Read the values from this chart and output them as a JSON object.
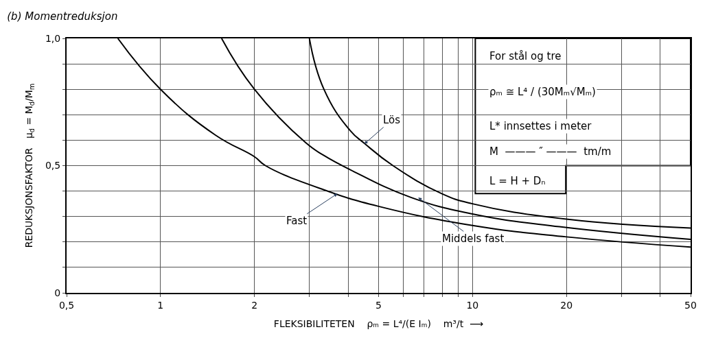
{
  "chart_data": {
    "type": "line",
    "title": "(b) Momentreduksjon",
    "xlabel": "FLEKSIBILITETEN    ρₘ = L⁴/(E Iₘ)    m³/t  ⟶",
    "ylabel": "REDUKSJONSFAKTOR   μ$_{d}$ = M$_{d}$/M$_{m}$",
    "log": "x",
    "grid": true,
    "marker": "none",
    "line_style": "solid",
    "xlim": [
      0.5,
      50
    ],
    "xticks": [
      {
        "value": 0.5,
        "label": "0,5"
      },
      1,
      2,
      {
        "value": 3,
        "label": null
      },
      {
        "value": 4,
        "label": null
      },
      5,
      {
        "value": 6,
        "label": null
      },
      {
        "value": 7,
        "label": null
      },
      {
        "value": 8,
        "label": null
      },
      {
        "value": 9,
        "label": null
      },
      10,
      20,
      {
        "value": 30,
        "label": null
      },
      {
        "value": 40,
        "label": null
      },
      50
    ],
    "ylim": [
      0,
      1
    ],
    "yticks": [
      0,
      {
        "value": 0.1,
        "label": null
      },
      {
        "value": 0.2,
        "label": null
      },
      {
        "value": 0.3,
        "label": null
      },
      {
        "value": 0.4,
        "label": null
      },
      {
        "value": 0.5,
        "label": "0,5"
      },
      {
        "value": 0.6,
        "label": null
      },
      {
        "value": 0.7,
        "label": null
      },
      {
        "value": 0.8,
        "label": null
      },
      {
        "value": 0.9,
        "label": null
      },
      {
        "value": 1,
        "label": "1,0"
      }
    ],
    "series": [
      {
        "color": "#000000",
        "x": [
          0.73,
          1,
          1.5,
          2,
          2.17,
          3.34,
          5,
          10,
          20,
          50
        ],
        "values": [
          1,
          0.8,
          0.62,
          0.535,
          0.5,
          0.405,
          0.34,
          0.265,
          0.22,
          0.18
        ]
      },
      {
        "color": "#000000",
        "x": [
          1.57,
          2,
          2.92,
          3.34,
          4.04,
          6.35,
          10,
          19,
          50
        ],
        "values": [
          1,
          0.8,
          0.59,
          0.54,
          0.485,
          0.375,
          0.31,
          0.26,
          0.21
        ]
      },
      {
        "color": "#000000",
        "x": [
          3,
          3.34,
          4.04,
          4.53,
          5.56,
          7.97,
          10,
          20,
          50
        ],
        "values": [
          1,
          0.8,
          0.64,
          0.585,
          0.5,
          0.39,
          0.35,
          0.29,
          0.255
        ]
      }
    ],
    "annotations": [
      {
        "text": "Fast",
        "x": 3.69,
        "y": 0.39
      },
      {
        "text": "Middels fast",
        "x": 6.7,
        "y": 0.375
      },
      {
        "text": "Lös",
        "x": 4.5,
        "y": 0.585
      },
      "For stål og tre",
      "ρₘ ≅ L⁴ / (30Mₘ√Mₘ)",
      "L* innsettes i meter",
      "M  ——— ″ ———  tm/m",
      "L = H + Dₙ"
    ]
  }
}
